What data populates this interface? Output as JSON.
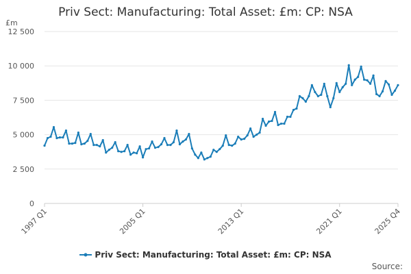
{
  "chart_data": {
    "type": "line",
    "title": "Priv Sect: Manufacturing: Total Asset: £m: CP: NSA",
    "ylabel": "£m",
    "xlabel": "",
    "ylim": [
      0,
      12500
    ],
    "yticks": [
      0,
      2500,
      5000,
      7500,
      10000,
      12500
    ],
    "ytick_labels": [
      "0",
      "2 500",
      "5 000",
      "7 500",
      "10 000",
      "12 500"
    ],
    "x_tick_labels": [
      "1997 Q1",
      "2005 Q1",
      "2013 Q1",
      "2021 Q1",
      "2025 Q4"
    ],
    "x_start": "1997 Q1",
    "x_end": "2025 Q4",
    "grid": "horizontal",
    "legend_position": "bottom",
    "color": "#1a7db8",
    "series": [
      {
        "name": "Priv Sect: Manufacturing: Total Asset: £m: CP: NSA",
        "values": [
          4200,
          4750,
          4850,
          5550,
          4750,
          4800,
          4800,
          5300,
          4350,
          4350,
          4400,
          5150,
          4300,
          4350,
          4550,
          5050,
          4250,
          4250,
          4150,
          4600,
          3700,
          3900,
          4050,
          4450,
          3800,
          3750,
          3800,
          4250,
          3550,
          3700,
          3650,
          4150,
          3350,
          3950,
          4000,
          4500,
          4050,
          4100,
          4300,
          4750,
          4250,
          4250,
          4450,
          5300,
          4300,
          4500,
          4650,
          5050,
          4000,
          3550,
          3300,
          3700,
          3200,
          3300,
          3400,
          3900,
          3750,
          3950,
          4200,
          4950,
          4250,
          4200,
          4350,
          4850,
          4650,
          4700,
          4950,
          5450,
          4850,
          5000,
          5150,
          6150,
          5650,
          5950,
          6000,
          6650,
          5700,
          5800,
          5800,
          6300,
          6300,
          6800,
          6900,
          7800,
          7650,
          7400,
          7800,
          8600,
          8100,
          7800,
          7900,
          8700,
          7800,
          7000,
          7650,
          8750,
          8100,
          8450,
          8700,
          10050,
          8600,
          9000,
          9200,
          9950,
          9000,
          8950,
          8700,
          9300,
          7950,
          7800,
          8150,
          8900,
          8650,
          7900,
          8200,
          8600
        ]
      }
    ]
  },
  "legend": {
    "label": "Priv Sect: Manufacturing: Total Asset: £m: CP: NSA"
  },
  "source": {
    "label": "Source:"
  }
}
